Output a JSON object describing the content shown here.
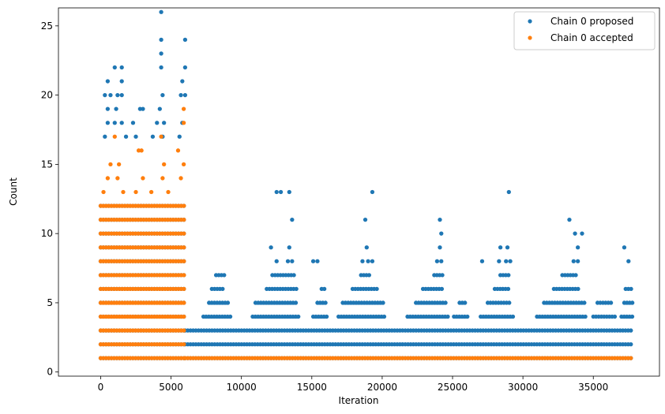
{
  "chart_data": {
    "type": "scatter",
    "xlabel": "Iteration",
    "ylabel": "Count",
    "xlim": [
      -3000,
      39700
    ],
    "ylim": [
      -0.3,
      26.3
    ],
    "xticks": [
      0,
      5000,
      10000,
      15000,
      20000,
      25000,
      30000,
      35000
    ],
    "yticks": [
      0,
      5,
      10,
      15,
      20,
      25
    ],
    "grid": false,
    "legend_position": "top-right",
    "series": [
      {
        "name": "Chain 0 proposed",
        "color": "#1f77b4",
        "bands": [
          {
            "x_start": 0,
            "x_end": 6000,
            "y_min": 1,
            "y_max": 12
          },
          {
            "x_start": 6000,
            "x_end": 37800,
            "y_min": 1,
            "y_max": 3
          }
        ],
        "points": [
          {
            "x": 4300,
            "y": 26
          },
          {
            "x": 4300,
            "y": 24
          },
          {
            "x": 6000,
            "y": 24
          },
          {
            "x": 4300,
            "y": 23
          },
          {
            "x": 1000,
            "y": 22
          },
          {
            "x": 1500,
            "y": 22
          },
          {
            "x": 4300,
            "y": 22
          },
          {
            "x": 6000,
            "y": 22
          },
          {
            "x": 500,
            "y": 21
          },
          {
            "x": 1500,
            "y": 21
          },
          {
            "x": 5800,
            "y": 21
          },
          {
            "x": 300,
            "y": 20
          },
          {
            "x": 700,
            "y": 20
          },
          {
            "x": 1200,
            "y": 20
          },
          {
            "x": 1500,
            "y": 20
          },
          {
            "x": 4400,
            "y": 20
          },
          {
            "x": 5700,
            "y": 20
          },
          {
            "x": 6000,
            "y": 20
          },
          {
            "x": 500,
            "y": 19
          },
          {
            "x": 1100,
            "y": 19
          },
          {
            "x": 2800,
            "y": 19
          },
          {
            "x": 3000,
            "y": 19
          },
          {
            "x": 4200,
            "y": 19
          },
          {
            "x": 500,
            "y": 18
          },
          {
            "x": 1000,
            "y": 18
          },
          {
            "x": 1500,
            "y": 18
          },
          {
            "x": 2300,
            "y": 18
          },
          {
            "x": 4000,
            "y": 18
          },
          {
            "x": 4500,
            "y": 18
          },
          {
            "x": 5800,
            "y": 18
          },
          {
            "x": 300,
            "y": 17
          },
          {
            "x": 1800,
            "y": 17
          },
          {
            "x": 2500,
            "y": 17
          },
          {
            "x": 3700,
            "y": 17
          },
          {
            "x": 4400,
            "y": 17
          },
          {
            "x": 5600,
            "y": 17
          },
          {
            "x": 12500,
            "y": 13
          },
          {
            "x": 12800,
            "y": 13
          },
          {
            "x": 13400,
            "y": 13
          },
          {
            "x": 19300,
            "y": 13
          },
          {
            "x": 29000,
            "y": 13
          },
          {
            "x": 13600,
            "y": 11
          },
          {
            "x": 18800,
            "y": 11
          },
          {
            "x": 24100,
            "y": 11
          },
          {
            "x": 33300,
            "y": 11
          },
          {
            "x": 24200,
            "y": 10
          },
          {
            "x": 33700,
            "y": 10
          },
          {
            "x": 34200,
            "y": 10
          },
          {
            "x": 12100,
            "y": 9
          },
          {
            "x": 13400,
            "y": 9
          },
          {
            "x": 18900,
            "y": 9
          },
          {
            "x": 24100,
            "y": 9
          },
          {
            "x": 28400,
            "y": 9
          },
          {
            "x": 28900,
            "y": 9
          },
          {
            "x": 33900,
            "y": 9
          },
          {
            "x": 37200,
            "y": 9
          },
          {
            "x": 12500,
            "y": 8
          },
          {
            "x": 13300,
            "y": 8
          },
          {
            "x": 13600,
            "y": 8
          },
          {
            "x": 15100,
            "y": 8
          },
          {
            "x": 15400,
            "y": 8
          },
          {
            "x": 18600,
            "y": 8
          },
          {
            "x": 19000,
            "y": 8
          },
          {
            "x": 19300,
            "y": 8
          },
          {
            "x": 23900,
            "y": 8
          },
          {
            "x": 24200,
            "y": 8
          },
          {
            "x": 27100,
            "y": 8
          },
          {
            "x": 28300,
            "y": 8
          },
          {
            "x": 28800,
            "y": 8
          },
          {
            "x": 29100,
            "y": 8
          },
          {
            "x": 33600,
            "y": 8
          },
          {
            "x": 33900,
            "y": 8
          },
          {
            "x": 37500,
            "y": 8
          }
        ],
        "ridges": [
          {
            "x_start": 7300,
            "x_end": 9300,
            "y": 4
          },
          {
            "x_start": 7700,
            "x_end": 9200,
            "y": 5
          },
          {
            "x_start": 7900,
            "x_end": 8700,
            "y": 6
          },
          {
            "x_start": 8200,
            "x_end": 8800,
            "y": 7
          },
          {
            "x_start": 10800,
            "x_end": 14200,
            "y": 4
          },
          {
            "x_start": 11000,
            "x_end": 14000,
            "y": 5
          },
          {
            "x_start": 11800,
            "x_end": 13900,
            "y": 6
          },
          {
            "x_start": 12200,
            "x_end": 13800,
            "y": 7
          },
          {
            "x_start": 15100,
            "x_end": 16200,
            "y": 4
          },
          {
            "x_start": 15400,
            "x_end": 16000,
            "y": 5
          },
          {
            "x_start": 15700,
            "x_end": 16000,
            "y": 6
          },
          {
            "x_start": 16900,
            "x_end": 20300,
            "y": 4
          },
          {
            "x_start": 17200,
            "x_end": 20100,
            "y": 5
          },
          {
            "x_start": 17900,
            "x_end": 19800,
            "y": 6
          },
          {
            "x_start": 18500,
            "x_end": 19200,
            "y": 7
          },
          {
            "x_start": 21800,
            "x_end": 24800,
            "y": 4
          },
          {
            "x_start": 22400,
            "x_end": 24600,
            "y": 5
          },
          {
            "x_start": 22900,
            "x_end": 24400,
            "y": 6
          },
          {
            "x_start": 23700,
            "x_end": 24300,
            "y": 7
          },
          {
            "x_start": 25100,
            "x_end": 26200,
            "y": 4
          },
          {
            "x_start": 25500,
            "x_end": 26000,
            "y": 5
          },
          {
            "x_start": 27000,
            "x_end": 29300,
            "y": 4
          },
          {
            "x_start": 27500,
            "x_end": 29200,
            "y": 5
          },
          {
            "x_start": 28000,
            "x_end": 29100,
            "y": 6
          },
          {
            "x_start": 28400,
            "x_end": 29000,
            "y": 7
          },
          {
            "x_start": 31000,
            "x_end": 34600,
            "y": 4
          },
          {
            "x_start": 31500,
            "x_end": 34400,
            "y": 5
          },
          {
            "x_start": 32200,
            "x_end": 34100,
            "y": 6
          },
          {
            "x_start": 32800,
            "x_end": 33900,
            "y": 7
          },
          {
            "x_start": 35000,
            "x_end": 36600,
            "y": 4
          },
          {
            "x_start": 35300,
            "x_end": 36300,
            "y": 5
          },
          {
            "x_start": 37000,
            "x_end": 37800,
            "y": 4
          },
          {
            "x_start": 37200,
            "x_end": 37800,
            "y": 5
          },
          {
            "x_start": 37300,
            "x_end": 37700,
            "y": 6
          }
        ]
      },
      {
        "name": "Chain 0 accepted",
        "color": "#ff7f0e",
        "bands": [
          {
            "x_start": 0,
            "x_end": 6000,
            "y_min": 1,
            "y_max": 12
          },
          {
            "x_start": 6000,
            "x_end": 37800,
            "y_min": 1,
            "y_max": 1
          }
        ],
        "points": [
          {
            "x": 5900,
            "y": 19
          },
          {
            "x": 5900,
            "y": 18
          },
          {
            "x": 1000,
            "y": 17
          },
          {
            "x": 4300,
            "y": 17
          },
          {
            "x": 2700,
            "y": 16
          },
          {
            "x": 2900,
            "y": 16
          },
          {
            "x": 5500,
            "y": 16
          },
          {
            "x": 700,
            "y": 15
          },
          {
            "x": 1300,
            "y": 15
          },
          {
            "x": 4500,
            "y": 15
          },
          {
            "x": 5900,
            "y": 15
          },
          {
            "x": 500,
            "y": 14
          },
          {
            "x": 1200,
            "y": 14
          },
          {
            "x": 3000,
            "y": 14
          },
          {
            "x": 4400,
            "y": 14
          },
          {
            "x": 5700,
            "y": 14
          },
          {
            "x": 200,
            "y": 13
          },
          {
            "x": 1600,
            "y": 13
          },
          {
            "x": 2500,
            "y": 13
          },
          {
            "x": 3600,
            "y": 13
          },
          {
            "x": 4800,
            "y": 13
          }
        ]
      }
    ]
  }
}
